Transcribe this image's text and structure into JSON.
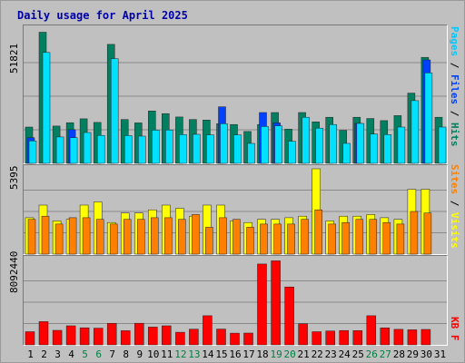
{
  "title": "Daily usage for April 2025",
  "colors": {
    "hits": "#008060",
    "files": "#0040ff",
    "pages": "#00e0ff",
    "visits": "#ffff00",
    "sites": "#ff8000",
    "kbytes": "#ff0000",
    "weekend_label": "#008040",
    "weekday_label": "#000000",
    "grid": "#8a8a8a",
    "background": "#c0c0c0"
  },
  "panels": {
    "top": {
      "max_label": "51821",
      "legend": [
        {
          "text": "Pages",
          "color": "#00c8ff"
        },
        {
          "text": " / ",
          "color": "#000000"
        },
        {
          "text": "Files",
          "color": "#0040ff"
        },
        {
          "text": " / ",
          "color": "#000000"
        },
        {
          "text": "Hits",
          "color": "#008060"
        }
      ]
    },
    "middle": {
      "max_label": "5395",
      "legend": [
        {
          "text": "Sites",
          "color": "#ff8000"
        },
        {
          "text": " / ",
          "color": "#000000"
        },
        {
          "text": "Visits",
          "color": "#ffff00"
        }
      ]
    },
    "bottom": {
      "max_label": "8092440",
      "legend": [
        {
          "text": "KB F",
          "color": "#ff0000"
        }
      ]
    }
  },
  "chart_data": {
    "type": "bar",
    "title": "Daily usage for April 2025",
    "categories": [
      "1",
      "2",
      "3",
      "4",
      "5",
      "6",
      "7",
      "8",
      "9",
      "10",
      "11",
      "12",
      "13",
      "14",
      "15",
      "16",
      "17",
      "18",
      "19",
      "20",
      "21",
      "22",
      "23",
      "24",
      "25",
      "26",
      "27",
      "28",
      "29",
      "30",
      "31"
    ],
    "weekend_days": [
      "5",
      "6",
      "12",
      "13",
      "19",
      "20",
      "26",
      "27"
    ],
    "panels": [
      {
        "ymax": 51821,
        "series": [
          {
            "name": "Hits",
            "values": [
              14000,
              50600,
              14400,
              15700,
              17200,
              15800,
              45900,
              16900,
              15600,
              20200,
              19200,
              17900,
              16900,
              16700,
              15300,
              15000,
              12300,
              15000,
              19600,
              13200,
              19600,
              16000,
              17800,
              12700,
              17800,
              17300,
              16500,
              18400,
              27100,
              40900,
              17800
            ]
          },
          {
            "name": "Files",
            "values": [
              9900,
              0,
              0,
              13000,
              0,
              0,
              0,
              0,
              0,
              0,
              0,
              0,
              0,
              0,
              21800,
              0,
              0,
              19600,
              15600,
              0,
              0,
              0,
              0,
              0,
              15400,
              0,
              0,
              0,
              0,
              39900,
              0
            ]
          },
          {
            "name": "Pages",
            "values": [
              8700,
              42800,
              10200,
              9900,
              11900,
              10800,
              40400,
              10700,
              10500,
              12800,
              12900,
              11100,
              11200,
              11000,
              15300,
              11000,
              7700,
              14200,
              14500,
              8500,
              17800,
              13600,
              15000,
              7700,
              15400,
              11300,
              11100,
              14000,
              24200,
              34900,
              14000
            ]
          }
        ]
      },
      {
        "ymax": 5395,
        "series": [
          {
            "name": "Visits",
            "values": [
              2300,
              3100,
              2100,
              2200,
              3100,
              3300,
              2000,
              2600,
              2600,
              2800,
              3100,
              2900,
              2400,
              3100,
              3100,
              2100,
              2000,
              2200,
              2200,
              2300,
              2400,
              5395,
              2100,
              2400,
              2400,
              2500,
              2300,
              2200,
              4100,
              4100,
              0
            ]
          },
          {
            "name": "Sites",
            "values": [
              2200,
              2400,
              1900,
              2300,
              2300,
              2200,
              1900,
              2200,
              2200,
              2300,
              2300,
              2200,
              2500,
              1700,
              2300,
              2200,
              1700,
              1900,
              1900,
              1900,
              2200,
              2800,
              1900,
              2000,
              2200,
              2200,
              2000,
              1900,
              2700,
              2600,
              0
            ]
          }
        ]
      },
      {
        "ymax": 8092440,
        "series": [
          {
            "name": "KB F",
            "values": [
              1250000,
              2200000,
              1380000,
              1810000,
              1620000,
              1580000,
              2040000,
              1340000,
              2050000,
              1690000,
              1810000,
              1200000,
              1490000,
              2760000,
              1500000,
              1110000,
              1120000,
              7670000,
              7970000,
              5490000,
              2010000,
              1250000,
              1320000,
              1360000,
              1350000,
              2760000,
              1610000,
              1470000,
              1430000,
              1460000,
              0
            ]
          }
        ]
      }
    ]
  }
}
